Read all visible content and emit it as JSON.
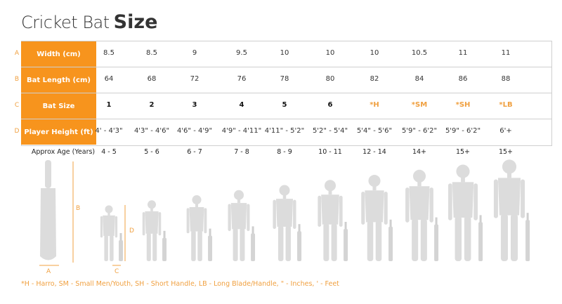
{
  "header": {
    "title_light": "Cricket Bat",
    "title_bold": "Size"
  },
  "table": {
    "rows": [
      {
        "letter": "A",
        "label": "Width (cm)",
        "cells": [
          "8.5",
          "8.5",
          "9",
          "9.5",
          "10",
          "10",
          "10",
          "10.5",
          "11",
          "11"
        ]
      },
      {
        "letter": "B",
        "label": "Bat Length (cm)",
        "cells": [
          "64",
          "68",
          "72",
          "76",
          "78",
          "80",
          "82",
          "84",
          "86",
          "88"
        ]
      },
      {
        "letter": "C",
        "label": "Bat Size",
        "cells": [
          "1",
          "2",
          "3",
          "4",
          "5",
          "6",
          "*H",
          "*SM",
          "*SH",
          "*LB"
        ]
      },
      {
        "letter": "D",
        "label": "Player Height (ft)",
        "cells": [
          "4' - 4'3\"",
          "4'3\" - 4'6\"",
          "4'6\" - 4'9\"",
          "4'9\" - 4'11\"",
          "4'11\" - 5'2\"",
          "5'2\" - 5'4\"",
          "5'4\" - 5'6\"",
          "5'9\" - 6'2\"",
          "5'9\" - 6'2\"",
          "6'+"
        ]
      }
    ]
  },
  "age_row": {
    "label": "Approx Age (Years)",
    "cells": [
      "4 - 5",
      "5 - 6",
      "6 - 7",
      "7 - 8",
      "8 - 9",
      "10 - 11",
      "12 - 14",
      "14+",
      "15+",
      "15+"
    ]
  },
  "diagram": {
    "a": "A",
    "b": "B",
    "c": "C",
    "d": "D"
  },
  "footnote": "*H - Harro, SM - Small Men/Youth, SH - Short Handle,  LB - Long Blade/Handle, \" - Inches, ' - Feet"
}
